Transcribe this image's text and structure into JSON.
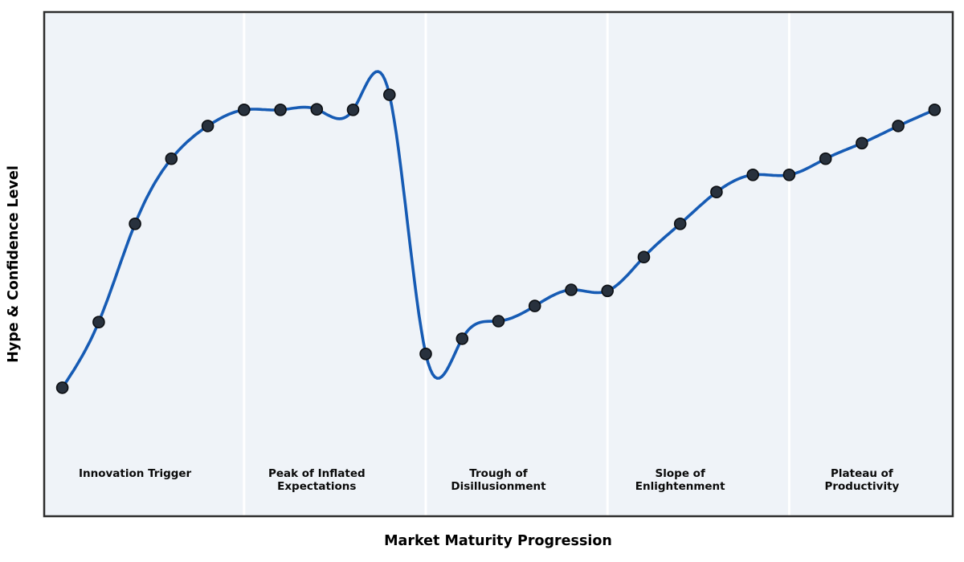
{
  "chart_data": {
    "type": "line",
    "title": "",
    "xlabel": "Market Maturity Progression",
    "ylabel": "Hype & Confidence Level",
    "xlim": [
      0.5,
      25.5
    ],
    "ylim": [
      0,
      100
    ],
    "grid": false,
    "legend": "none",
    "axis_ticks": "none",
    "x": [
      1,
      2,
      3,
      4,
      5,
      6,
      7,
      8,
      9,
      10,
      11,
      12,
      13,
      14,
      15,
      16,
      17,
      18,
      19,
      20,
      21,
      22,
      23,
      24,
      25
    ],
    "series": [
      {
        "name": "Hype & Confidence",
        "interpolation": "natural-cubic-spline",
        "values": [
          25.5,
          38.5,
          58.0,
          70.9,
          77.4,
          80.6,
          80.6,
          80.7,
          80.6,
          83.6,
          32.2,
          35.2,
          38.7,
          41.7,
          44.9,
          44.7,
          51.4,
          58.0,
          64.3,
          67.7,
          67.7,
          70.9,
          74.0,
          77.4,
          80.6
        ]
      }
    ],
    "phases": [
      {
        "label": "Innovation Trigger",
        "x_start": 0.5,
        "x_end": 6.0,
        "label_x": 3
      },
      {
        "label": "Peak of Inflated\nExpectations",
        "x_start": 6.0,
        "x_end": 11.0,
        "label_x": 8
      },
      {
        "label": "Trough of\nDisillusionment",
        "x_start": 11.0,
        "x_end": 16.0,
        "label_x": 13
      },
      {
        "label": "Slope of\nEnlightenment",
        "x_start": 16.0,
        "x_end": 21.0,
        "label_x": 18
      },
      {
        "label": "Plateau of\nProductivity",
        "x_start": 21.0,
        "x_end": 25.5,
        "label_x": 23
      }
    ],
    "colors": {
      "plot_background": "#eff3f8",
      "phase_separator": "#ffffff",
      "curve": "#165bb4",
      "point_fill": "#28313d",
      "point_edge": "#0b0e12",
      "border": "#2d2d2d",
      "label_text": "#0a0a0a"
    }
  }
}
